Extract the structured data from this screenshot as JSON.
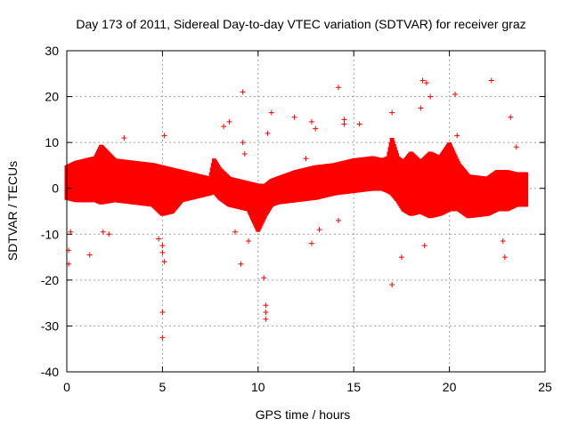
{
  "chart_data": {
    "type": "scatter",
    "title": "Day 173 of 2011, Sidereal Day-to-day VTEC variation (SDTVAR) for receiver graz",
    "xlabel": "GPS time / hours",
    "ylabel": "SDTVAR / TECUs",
    "xlim": [
      0,
      25
    ],
    "ylim": [
      -40,
      30
    ],
    "xticks": [
      0,
      5,
      10,
      15,
      20,
      25
    ],
    "yticks": [
      -40,
      -30,
      -20,
      -10,
      0,
      10,
      20,
      30
    ],
    "grid": true,
    "marker": "+",
    "color": "#ff0000",
    "series": [
      {
        "name": "SDTVAR",
        "envelope": {
          "x": [
            0.0,
            0.5,
            1.0,
            1.5,
            1.8,
            2.5,
            3.5,
            4.5,
            5.0,
            5.5,
            6.0,
            7.0,
            7.5,
            7.7,
            8.0,
            8.5,
            9.0,
            9.5,
            10.0,
            10.4,
            10.7,
            11.0,
            12.0,
            13.0,
            14.0,
            15.0,
            16.0,
            16.5,
            16.8,
            17.0,
            17.3,
            17.6,
            18.0,
            18.5,
            19.0,
            19.5,
            20.0,
            20.5,
            21.0,
            22.0,
            22.5,
            23.0,
            23.5,
            24.0
          ],
          "upper": [
            5.0,
            6.0,
            6.5,
            7.0,
            9.5,
            6.5,
            6.0,
            5.5,
            5.0,
            4.5,
            4.0,
            3.0,
            2.5,
            6.5,
            4.5,
            2.5,
            2.0,
            1.5,
            1.0,
            1.0,
            2.0,
            2.5,
            4.0,
            5.0,
            5.5,
            6.5,
            7.0,
            6.5,
            7.0,
            11.0,
            7.0,
            6.0,
            8.0,
            6.0,
            8.0,
            7.0,
            10.0,
            5.5,
            3.0,
            2.5,
            4.0,
            4.0,
            3.5,
            3.5
          ],
          "lower": [
            -2.5,
            -3.0,
            -3.0,
            -3.0,
            -3.5,
            -3.0,
            -3.5,
            -4.0,
            -6.0,
            -5.5,
            -3.0,
            -2.0,
            -1.5,
            -1.0,
            -2.5,
            -4.0,
            -4.5,
            -5.0,
            -9.5,
            -6.0,
            -4.0,
            -3.5,
            -3.0,
            -2.5,
            -1.5,
            -1.0,
            -0.5,
            -0.5,
            -1.0,
            -1.5,
            -3.0,
            -5.0,
            -6.0,
            -5.5,
            -6.5,
            -6.0,
            -5.0,
            -5.0,
            -6.5,
            -6.0,
            -5.0,
            -5.0,
            -4.0,
            -4.0
          ]
        },
        "outliers": [
          [
            0.1,
            -16.5
          ],
          [
            0.1,
            -13.5
          ],
          [
            0.2,
            -9.5
          ],
          [
            1.2,
            -14.5
          ],
          [
            1.9,
            -9.5
          ],
          [
            2.2,
            -10.0
          ],
          [
            3.0,
            11.0
          ],
          [
            4.8,
            -11.0
          ],
          [
            5.0,
            -27.0
          ],
          [
            5.0,
            -32.5
          ],
          [
            5.0,
            -14.0
          ],
          [
            5.0,
            -12.5
          ],
          [
            5.1,
            11.5
          ],
          [
            5.1,
            -16.0
          ],
          [
            8.2,
            13.5
          ],
          [
            8.5,
            14.5
          ],
          [
            8.8,
            -9.5
          ],
          [
            9.2,
            21.0
          ],
          [
            9.2,
            10.0
          ],
          [
            9.3,
            7.5
          ],
          [
            9.1,
            -16.5
          ],
          [
            9.5,
            -11.5
          ],
          [
            10.3,
            -19.5
          ],
          [
            10.4,
            -25.5
          ],
          [
            10.4,
            -27.0
          ],
          [
            10.4,
            -28.5
          ],
          [
            10.5,
            12.0
          ],
          [
            10.7,
            16.5
          ],
          [
            11.9,
            15.5
          ],
          [
            12.5,
            6.5
          ],
          [
            12.8,
            14.5
          ],
          [
            13.0,
            13.0
          ],
          [
            12.8,
            -12.0
          ],
          [
            13.2,
            -9.0
          ],
          [
            14.2,
            22.0
          ],
          [
            14.5,
            15.0
          ],
          [
            14.5,
            14.0
          ],
          [
            14.2,
            -7.0
          ],
          [
            15.3,
            14.0
          ],
          [
            17.0,
            16.5
          ],
          [
            17.0,
            -21.0
          ],
          [
            17.5,
            -15.0
          ],
          [
            18.6,
            23.5
          ],
          [
            18.8,
            23.0
          ],
          [
            18.5,
            17.5
          ],
          [
            18.7,
            -12.5
          ],
          [
            19.0,
            20.0
          ],
          [
            20.3,
            20.5
          ],
          [
            20.4,
            11.5
          ],
          [
            22.2,
            23.5
          ],
          [
            22.8,
            -11.5
          ],
          [
            22.9,
            -15.0
          ],
          [
            23.2,
            15.5
          ],
          [
            23.5,
            9.0
          ]
        ]
      }
    ]
  }
}
